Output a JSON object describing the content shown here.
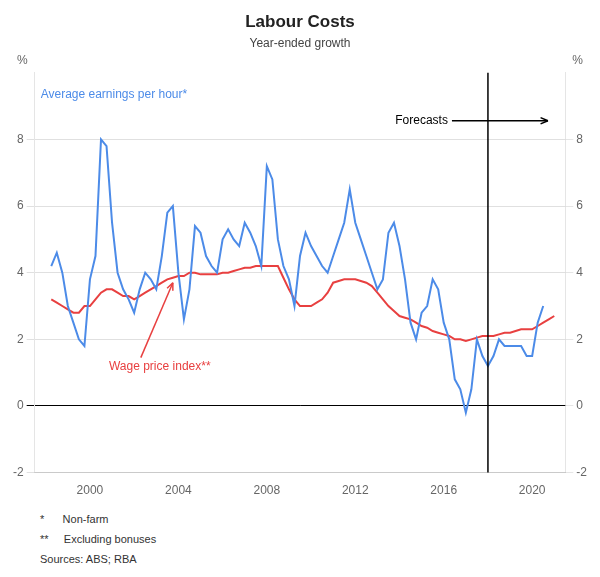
{
  "chart_data": {
    "type": "line",
    "title": "Labour Costs",
    "subtitle": "Year-ended growth",
    "ylabel": "%",
    "y2label": "%",
    "xlim": [
      1997.5,
      2021.5
    ],
    "xticks": [
      2000,
      2004,
      2008,
      2012,
      2016,
      2020
    ],
    "ylim": [
      -2,
      10
    ],
    "yticks": [
      -2,
      0,
      2,
      4,
      6,
      8
    ],
    "y2lim": [
      -2,
      10
    ],
    "y2ticks": [
      -2,
      0,
      2,
      4,
      6,
      8
    ],
    "grid": "y",
    "annotations": [
      {
        "text": "Forecasts",
        "x": 2018.0
      }
    ],
    "notes": [
      "*      Non-farm",
      "**     Excluding bonuses",
      "Sources: ABS; RBA"
    ],
    "series": [
      {
        "name": "Average earnings per hour*",
        "color": "#4C8BE8",
        "x": [
          1998.25,
          1998.5,
          1998.75,
          1999.0,
          1999.25,
          1999.5,
          1999.75,
          2000.0,
          2000.25,
          2000.5,
          2000.75,
          2001.0,
          2001.25,
          2001.5,
          2001.75,
          2002.0,
          2002.25,
          2002.5,
          2002.75,
          2003.0,
          2003.25,
          2003.5,
          2003.75,
          2004.0,
          2004.25,
          2004.5,
          2004.75,
          2005.0,
          2005.25,
          2005.5,
          2005.75,
          2006.0,
          2006.25,
          2006.5,
          2006.75,
          2007.0,
          2007.25,
          2007.5,
          2007.75,
          2008.0,
          2008.25,
          2008.5,
          2008.75,
          2009.0,
          2009.25,
          2009.5,
          2009.75,
          2010.0,
          2010.25,
          2010.5,
          2010.75,
          2011.0,
          2011.25,
          2011.5,
          2011.75,
          2012.0,
          2012.25,
          2012.5,
          2012.75,
          2013.0,
          2013.25,
          2013.5,
          2013.75,
          2014.0,
          2014.25,
          2014.5,
          2014.75,
          2015.0,
          2015.25,
          2015.5,
          2015.75,
          2016.0,
          2016.25,
          2016.5,
          2016.75,
          2017.0,
          2017.25,
          2017.5,
          2017.75,
          2018.0,
          2018.25,
          2018.5,
          2018.75,
          2019.0,
          2019.25,
          2019.5,
          2019.75,
          2020.0,
          2020.25,
          2020.5
        ],
        "values": [
          4.2,
          4.6,
          4.0,
          3.0,
          2.5,
          2.0,
          1.8,
          3.8,
          4.5,
          8.0,
          7.8,
          5.5,
          4.0,
          3.5,
          3.2,
          2.8,
          3.5,
          4.0,
          3.8,
          3.5,
          4.5,
          5.8,
          6.0,
          4.0,
          2.6,
          3.5,
          5.4,
          5.2,
          4.5,
          4.2,
          4.0,
          5.0,
          5.3,
          5.0,
          4.8,
          5.5,
          5.2,
          4.8,
          4.2,
          7.2,
          6.8,
          5.0,
          4.2,
          3.8,
          3.0,
          4.5,
          5.2,
          4.8,
          4.5,
          4.2,
          4.0,
          4.5,
          5.0,
          5.5,
          6.5,
          5.5,
          5.0,
          4.5,
          4.0,
          3.5,
          3.8,
          5.2,
          5.5,
          4.8,
          3.8,
          2.5,
          2.0,
          2.8,
          3.0,
          3.8,
          3.5,
          2.5,
          2.0,
          0.8,
          0.5,
          -0.2,
          0.5,
          2.0,
          1.5,
          1.2,
          1.5,
          2.0,
          1.8,
          1.8,
          1.8,
          1.8,
          1.5,
          1.5,
          2.5,
          3.0
        ]
      },
      {
        "name": "Wage price index**",
        "color": "#E84040",
        "x": [
          1998.25,
          1998.5,
          1998.75,
          1999.0,
          1999.25,
          1999.5,
          1999.75,
          2000.0,
          2000.25,
          2000.5,
          2000.75,
          2001.0,
          2001.25,
          2001.5,
          2001.75,
          2002.0,
          2002.25,
          2002.5,
          2002.75,
          2003.0,
          2003.25,
          2003.5,
          2003.75,
          2004.0,
          2004.25,
          2004.5,
          2004.75,
          2005.0,
          2005.25,
          2005.5,
          2005.75,
          2006.0,
          2006.25,
          2006.5,
          2006.75,
          2007.0,
          2007.25,
          2007.5,
          2007.75,
          2008.0,
          2008.25,
          2008.5,
          2008.75,
          2009.0,
          2009.25,
          2009.5,
          2009.75,
          2010.0,
          2010.25,
          2010.5,
          2010.75,
          2011.0,
          2011.25,
          2011.5,
          2011.75,
          2012.0,
          2012.25,
          2012.5,
          2012.75,
          2013.0,
          2013.25,
          2013.5,
          2013.75,
          2014.0,
          2014.25,
          2014.5,
          2014.75,
          2015.0,
          2015.25,
          2015.5,
          2015.75,
          2016.0,
          2016.25,
          2016.5,
          2016.75,
          2017.0,
          2017.25,
          2017.5,
          2017.75,
          2018.0,
          2018.25,
          2018.5,
          2018.75,
          2019.0,
          2019.25,
          2019.5,
          2019.75,
          2020.0,
          2020.25,
          2020.5,
          2020.75,
          2021.0
        ],
        "values": [
          3.2,
          3.1,
          3.0,
          2.9,
          2.8,
          2.8,
          3.0,
          3.0,
          3.2,
          3.4,
          3.5,
          3.5,
          3.4,
          3.3,
          3.3,
          3.2,
          3.3,
          3.4,
          3.5,
          3.6,
          3.7,
          3.8,
          3.85,
          3.9,
          3.9,
          4.0,
          4.0,
          3.95,
          3.95,
          3.95,
          3.95,
          4.0,
          4.0,
          4.05,
          4.1,
          4.15,
          4.15,
          4.2,
          4.2,
          4.2,
          4.2,
          4.2,
          3.85,
          3.5,
          3.2,
          3.0,
          3.0,
          3.0,
          3.1,
          3.2,
          3.4,
          3.7,
          3.75,
          3.8,
          3.8,
          3.8,
          3.75,
          3.7,
          3.6,
          3.4,
          3.2,
          3.0,
          2.85,
          2.7,
          2.65,
          2.6,
          2.5,
          2.4,
          2.35,
          2.25,
          2.2,
          2.15,
          2.1,
          2.0,
          2.0,
          1.95,
          2.0,
          2.05,
          2.1,
          2.1,
          2.1,
          2.15,
          2.2,
          2.2,
          2.25,
          2.3,
          2.3,
          2.3,
          2.4,
          2.5,
          2.6,
          2.7
        ]
      }
    ]
  }
}
